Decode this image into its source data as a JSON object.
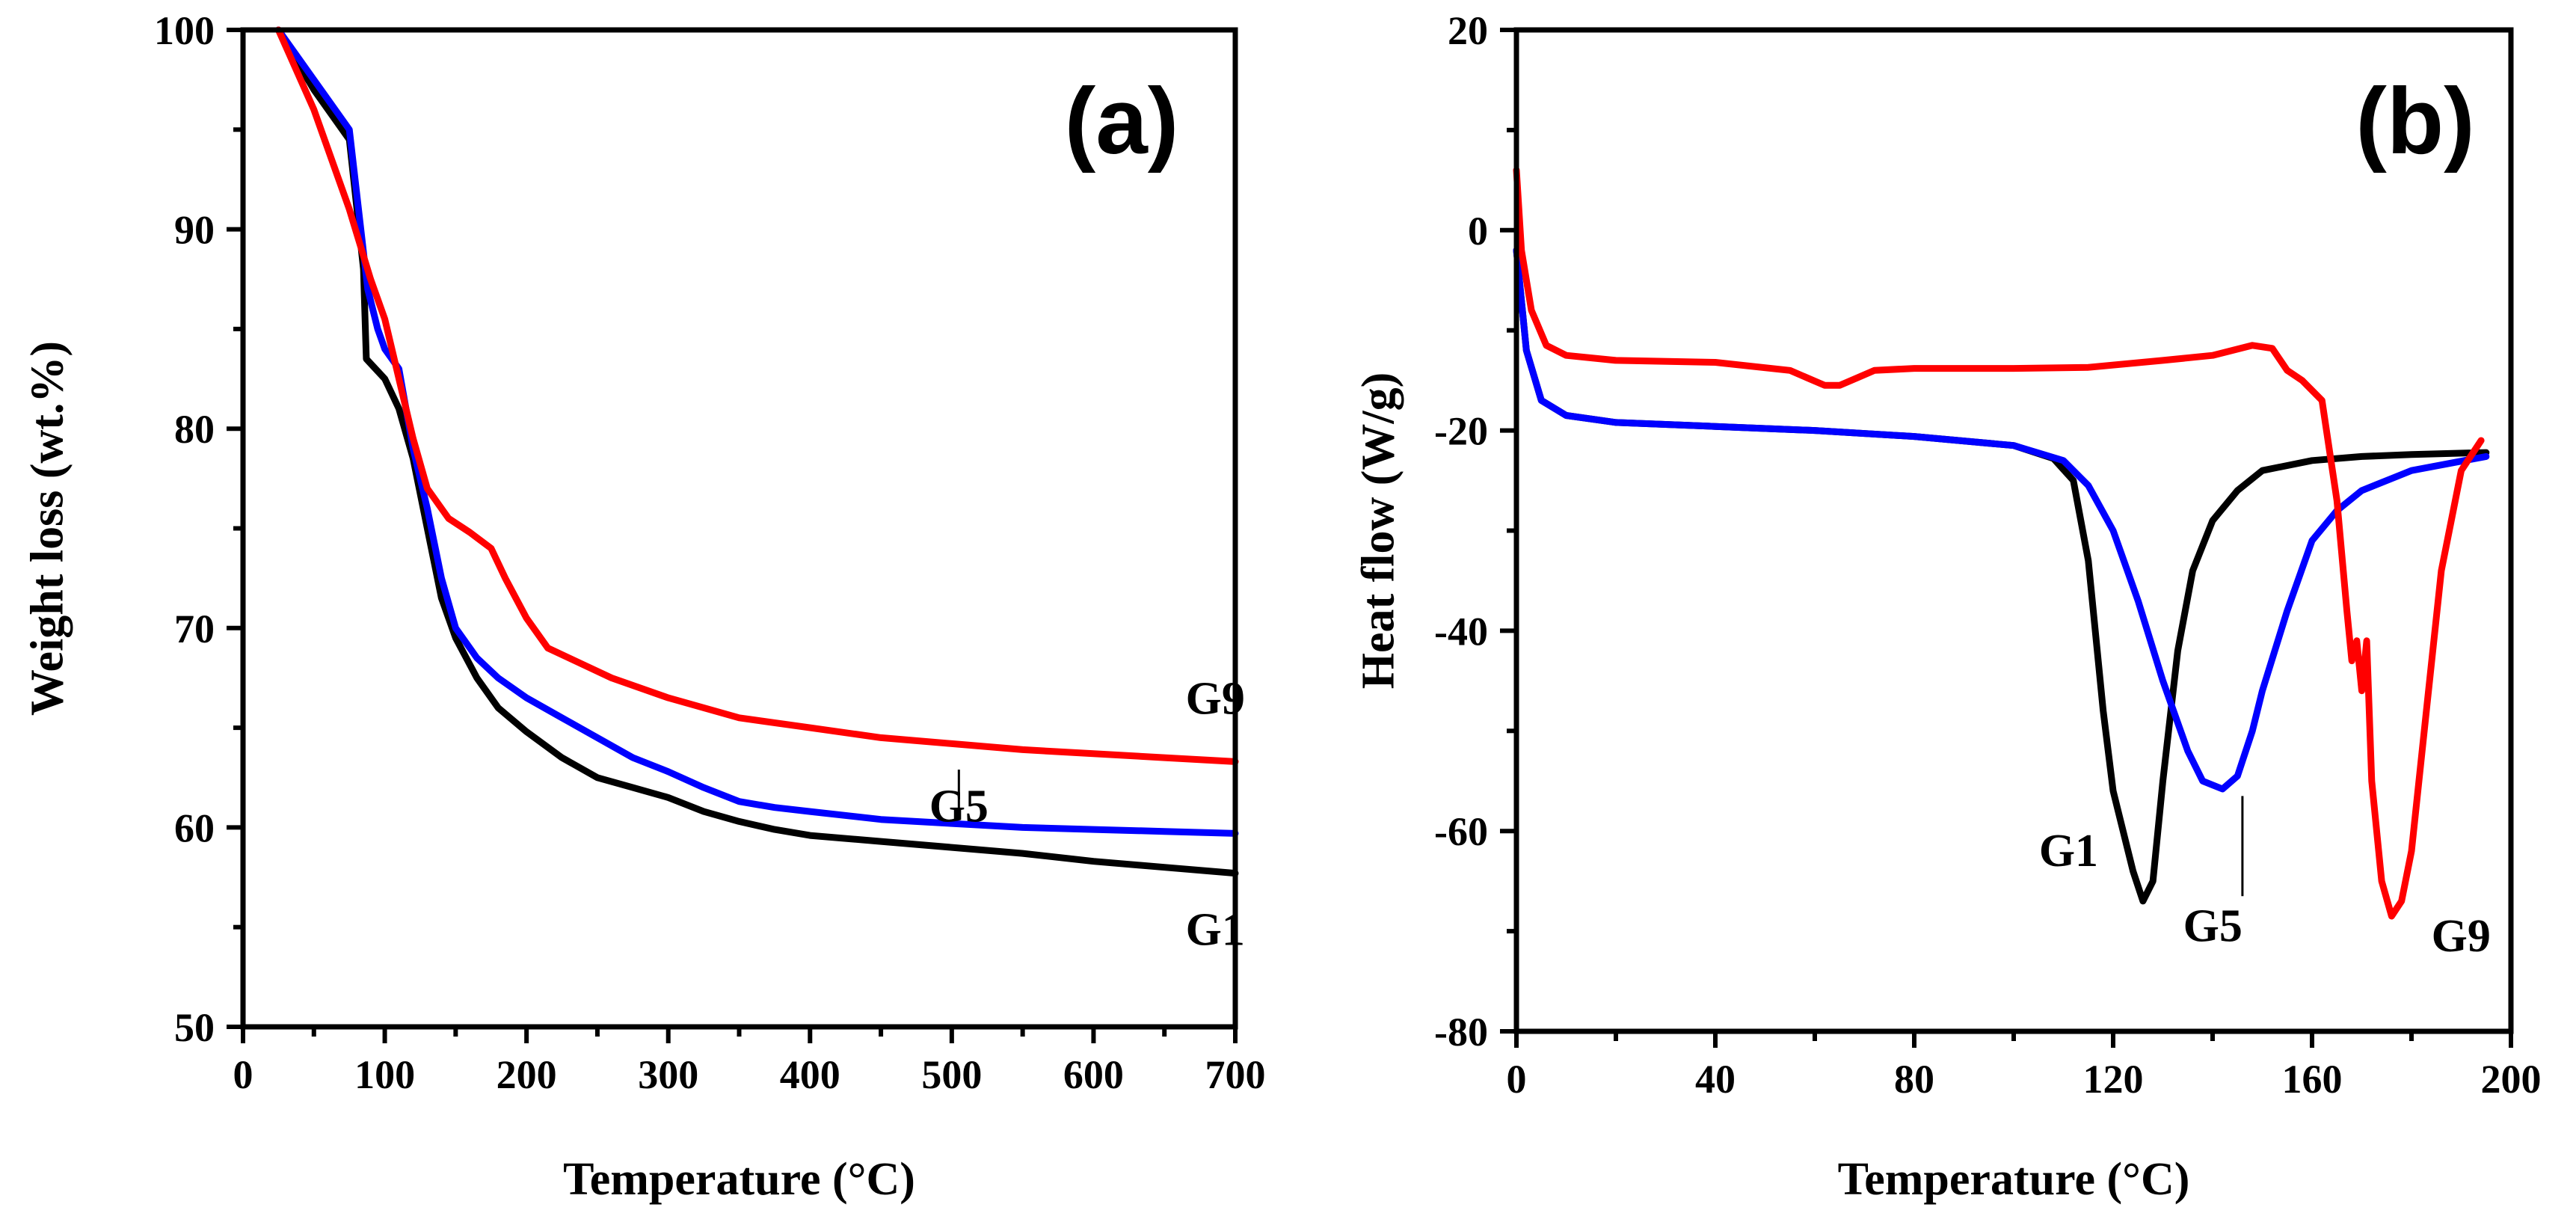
{
  "chart_data": [
    {
      "panel": "(a)",
      "type": "line",
      "title": "",
      "xlabel": "Temperature (°C)",
      "ylabel": "Weight loss (wt.%)",
      "xlim": [
        0,
        700
      ],
      "ylim": [
        50,
        100
      ],
      "xticks": [
        0,
        100,
        200,
        300,
        400,
        500,
        600,
        700
      ],
      "yticks": [
        50,
        60,
        70,
        80,
        90,
        100
      ],
      "xtick_labels": [
        "0",
        "100",
        "200",
        "300",
        "400",
        "500",
        "600",
        "700"
      ],
      "ytick_labels": [
        "50",
        "60",
        "70",
        "80",
        "90",
        "100"
      ],
      "grid": false,
      "series": [
        {
          "name": "G1",
          "color": "#000000",
          "x": [
            25,
            50,
            75,
            85,
            87,
            100,
            110,
            120,
            130,
            140,
            150,
            165,
            180,
            200,
            225,
            250,
            275,
            300,
            325,
            350,
            375,
            400,
            450,
            500,
            550,
            600,
            650,
            700
          ],
          "y": [
            100,
            97,
            94.5,
            88,
            83.5,
            82.5,
            81,
            78.5,
            75,
            71.5,
            69.5,
            67.5,
            66,
            64.8,
            63.5,
            62.5,
            62,
            61.5,
            60.8,
            60.3,
            59.9,
            59.6,
            59.3,
            59,
            58.7,
            58.3,
            58,
            57.7
          ]
        },
        {
          "name": "G5",
          "color": "#0000ff",
          "x": [
            25,
            50,
            75,
            88,
            95,
            100,
            110,
            120,
            130,
            140,
            150,
            165,
            180,
            200,
            225,
            250,
            275,
            300,
            325,
            350,
            375,
            400,
            450,
            500,
            550,
            600,
            650,
            700
          ],
          "y": [
            100,
            97.5,
            95,
            87,
            85,
            84,
            83,
            79,
            76,
            72.5,
            70,
            68.5,
            67.5,
            66.5,
            65.5,
            64.5,
            63.5,
            62.8,
            62,
            61.3,
            61,
            60.8,
            60.4,
            60.2,
            60,
            59.9,
            59.8,
            59.7
          ]
        },
        {
          "name": "G9",
          "color": "#ff0000",
          "x": [
            25,
            50,
            75,
            90,
            100,
            110,
            120,
            130,
            145,
            160,
            175,
            185,
            200,
            215,
            230,
            260,
            300,
            350,
            400,
            450,
            500,
            550,
            600,
            650,
            700
          ],
          "y": [
            100,
            96,
            91,
            87.5,
            85.5,
            82.5,
            79.5,
            77,
            75.5,
            74.8,
            74,
            72.5,
            70.5,
            69,
            68.5,
            67.5,
            66.5,
            65.5,
            65,
            64.5,
            64.2,
            63.9,
            63.7,
            63.5,
            63.3
          ]
        }
      ],
      "annotations": [
        {
          "text": "G5",
          "x": 505,
          "y": 60.3
        },
        {
          "text": "G9",
          "x": 665,
          "y": 65.7
        },
        {
          "text": "G1",
          "x": 665,
          "y": 54.1
        }
      ]
    },
    {
      "panel": "(b)",
      "type": "line",
      "title": "",
      "xlabel": "Temperature (°C)",
      "ylabel": "Heat flow (W/g)",
      "xlim": [
        0,
        200
      ],
      "ylim": [
        -80,
        20
      ],
      "xticks": [
        0,
        40,
        80,
        120,
        160,
        200
      ],
      "yticks": [
        -80,
        -60,
        -40,
        -20,
        0,
        20
      ],
      "xtick_labels": [
        "0",
        "40",
        "80",
        "120",
        "160",
        "200"
      ],
      "ytick_labels": [
        "-80",
        "-60",
        "-40",
        "-20",
        "0",
        "20"
      ],
      "grid": false,
      "series": [
        {
          "name": "G1",
          "color": "#000000",
          "x": [
            0,
            2,
            5,
            10,
            20,
            40,
            60,
            80,
            100,
            108,
            112,
            115,
            118,
            120,
            122,
            124,
            126,
            128,
            130,
            133,
            136,
            140,
            145,
            150,
            160,
            170,
            180,
            195
          ],
          "y": [
            -2,
            -12,
            -17,
            -18.5,
            -19.2,
            -19.6,
            -20.0,
            -20.6,
            -21.5,
            -22.8,
            -25,
            -33,
            -48,
            -56,
            -60,
            -64,
            -67,
            -65,
            -55,
            -42,
            -34,
            -29,
            -26,
            -24,
            -23,
            -22.6,
            -22.4,
            -22.2
          ]
        },
        {
          "name": "G5",
          "color": "#0000ff",
          "x": [
            0,
            2,
            5,
            10,
            20,
            40,
            60,
            80,
            100,
            110,
            115,
            120,
            125,
            130,
            135,
            138,
            142,
            145,
            148,
            150,
            155,
            160,
            165,
            170,
            180,
            195
          ],
          "y": [
            -2,
            -12,
            -17,
            -18.5,
            -19.2,
            -19.6,
            -20.0,
            -20.6,
            -21.5,
            -23,
            -25.5,
            -30,
            -37,
            -45,
            -52,
            -55,
            -55.8,
            -54.5,
            -50,
            -46,
            -38,
            -31,
            -28,
            -26,
            -24,
            -22.6
          ]
        },
        {
          "name": "G9",
          "color": "#ff0000",
          "x": [
            0,
            1,
            3,
            6,
            10,
            20,
            40,
            55,
            62,
            65,
            72,
            80,
            100,
            115,
            130,
            140,
            148,
            152,
            155,
            158,
            162,
            165,
            167,
            168,
            169,
            170,
            171,
            172,
            174,
            176,
            178,
            180,
            183,
            186,
            190,
            194
          ],
          "y": [
            6,
            -2,
            -8,
            -11.5,
            -12.5,
            -13,
            -13.2,
            -14,
            -15.5,
            -15.5,
            -14,
            -13.8,
            -13.8,
            -13.7,
            -13,
            -12.5,
            -11.5,
            -11.8,
            -14,
            -15,
            -17,
            -27,
            -38,
            -43,
            -41,
            -46,
            -41,
            -55,
            -65,
            -68.5,
            -67,
            -62,
            -48,
            -34,
            -24,
            -21
          ]
        }
      ],
      "annotations": [
        {
          "text": "G1",
          "x": 117,
          "y": -63.5
        },
        {
          "text": "G5",
          "x": 146,
          "y": -71
        },
        {
          "text": "G9",
          "x": 184,
          "y": -72
        }
      ]
    }
  ]
}
